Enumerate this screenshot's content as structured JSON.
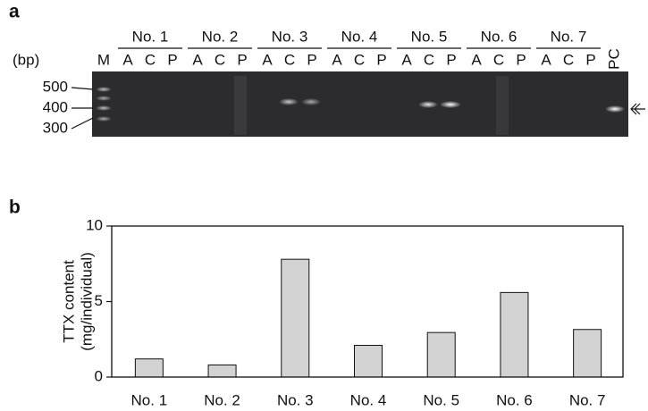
{
  "panel_a": {
    "label": "a",
    "unit": "(bp)",
    "marker_lane": "M",
    "groups": [
      {
        "label": "No. 1",
        "lanes": [
          "A",
          "C",
          "P"
        ]
      },
      {
        "label": "No. 2",
        "lanes": [
          "A",
          "C",
          "P"
        ]
      },
      {
        "label": "No. 3",
        "lanes": [
          "A",
          "C",
          "P"
        ]
      },
      {
        "label": "No. 4",
        "lanes": [
          "A",
          "C",
          "P"
        ]
      },
      {
        "label": "No. 5",
        "lanes": [
          "A",
          "C",
          "P"
        ]
      },
      {
        "label": "No. 6",
        "lanes": [
          "A",
          "C",
          "P"
        ]
      },
      {
        "label": "No. 7",
        "lanes": [
          "A",
          "C",
          "P"
        ]
      }
    ],
    "control_lane": "PC",
    "marker_sizes": [
      "500",
      "400",
      "300"
    ]
  },
  "chart_data": {
    "type": "bar",
    "label": "b",
    "y_label": [
      "TTX content",
      "(mg/individual)"
    ],
    "categories": [
      "No. 1",
      "No. 2",
      "No. 3",
      "No. 4",
      "No. 5",
      "No. 6",
      "No. 7"
    ],
    "values": [
      1.2,
      0.8,
      7.8,
      2.1,
      2.95,
      5.6,
      3.15
    ],
    "color": "#d3d3d3",
    "ylim": [
      0,
      10
    ],
    "yticks": [
      0,
      5,
      10
    ]
  }
}
